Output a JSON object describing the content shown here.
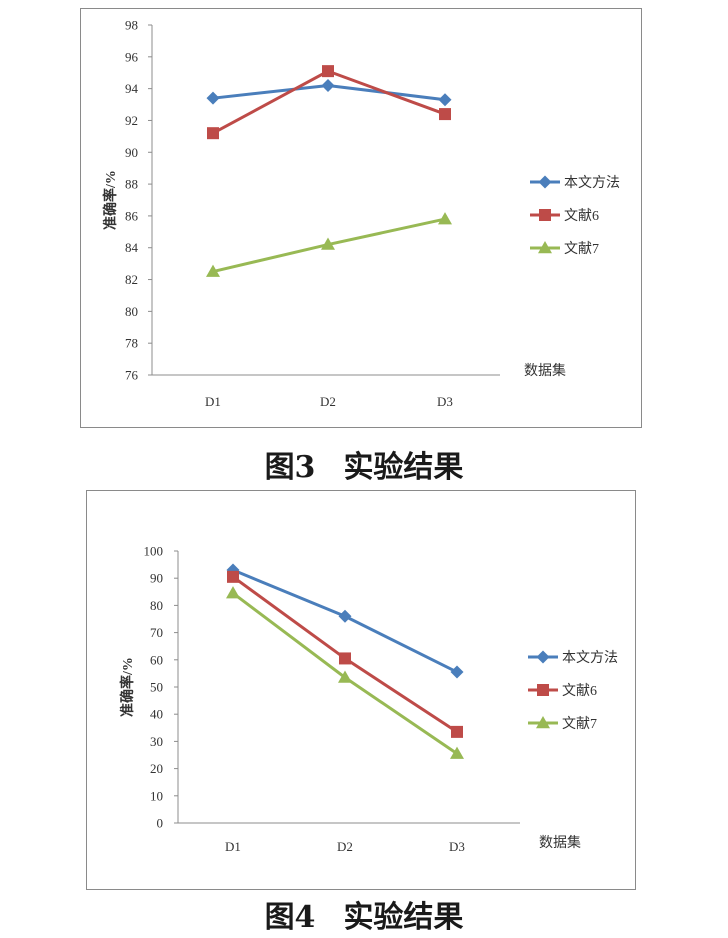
{
  "charts": [
    {
      "caption_fig": "图3",
      "caption_text": "实验结果",
      "chart_data": {
        "type": "line",
        "categories": [
          "D1",
          "D2",
          "D3"
        ],
        "series": [
          {
            "name": "本文方法",
            "values": [
              93.4,
              94.2,
              93.3
            ],
            "color": "#4a7ebb",
            "marker": "diamond"
          },
          {
            "name": "文献6",
            "values": [
              91.2,
              95.1,
              92.4
            ],
            "color": "#be4b48",
            "marker": "square"
          },
          {
            "name": "文献7",
            "values": [
              82.5,
              84.2,
              85.8
            ],
            "color": "#98b954",
            "marker": "triangle"
          }
        ],
        "ylabel": "准确率/%",
        "xlabel": "数据集",
        "ylim": [
          76,
          98
        ],
        "yticks": [
          "76",
          "78",
          "80",
          "82",
          "84",
          "86",
          "88",
          "90",
          "92",
          "94",
          "96",
          "98"
        ],
        "grid": false,
        "legend": "right"
      }
    },
    {
      "caption_fig": "图4",
      "caption_text": "实验结果",
      "chart_data": {
        "type": "line",
        "categories": [
          "D1",
          "D2",
          "D3"
        ],
        "series": [
          {
            "name": "本文方法",
            "values": [
              93,
              76,
              55.5
            ],
            "color": "#4a7ebb",
            "marker": "diamond"
          },
          {
            "name": "文献6",
            "values": [
              90.5,
              60.5,
              33.5
            ],
            "color": "#be4b48",
            "marker": "square"
          },
          {
            "name": "文献7",
            "values": [
              84.5,
              53.5,
              25.5
            ],
            "color": "#98b954",
            "marker": "triangle"
          }
        ],
        "ylabel": "准确率/%",
        "xlabel": "数据集",
        "ylim": [
          0,
          100
        ],
        "yticks": [
          "0",
          "10",
          "20",
          "30",
          "40",
          "50",
          "60",
          "70",
          "80",
          "90",
          "100"
        ],
        "grid": false,
        "legend": "right"
      }
    }
  ]
}
